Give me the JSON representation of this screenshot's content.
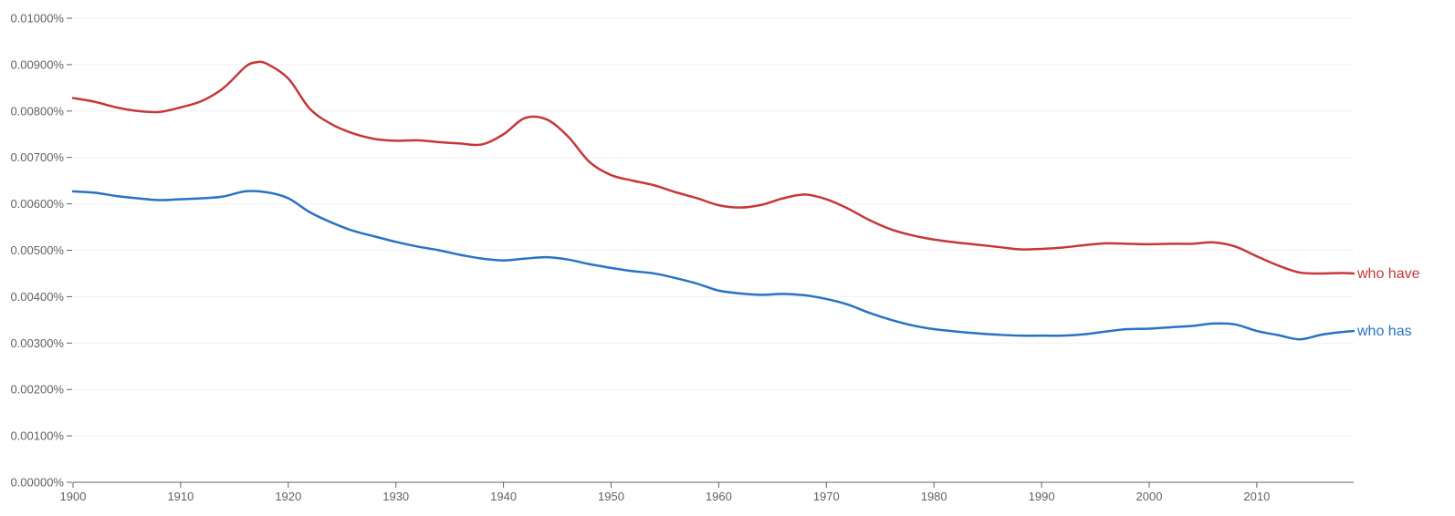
{
  "chart_data": {
    "type": "line",
    "title": "",
    "xlabel": "",
    "ylabel": "",
    "xlim": [
      1900,
      2019
    ],
    "ylim": [
      0,
      0.01
    ],
    "grid": true,
    "y_ticks": [
      {
        "value": 0.0,
        "label": "0.00000%"
      },
      {
        "value": 0.001,
        "label": "0.00100%"
      },
      {
        "value": 0.002,
        "label": "0.00200%"
      },
      {
        "value": 0.003,
        "label": "0.00300%"
      },
      {
        "value": 0.004,
        "label": "0.00400%"
      },
      {
        "value": 0.005,
        "label": "0.00500%"
      },
      {
        "value": 0.006,
        "label": "0.00600%"
      },
      {
        "value": 0.007,
        "label": "0.00700%"
      },
      {
        "value": 0.008,
        "label": "0.00800%"
      },
      {
        "value": 0.009,
        "label": "0.00900%"
      },
      {
        "value": 0.01,
        "label": "0.01000%"
      }
    ],
    "x_ticks": [
      {
        "value": 1900,
        "label": "1900"
      },
      {
        "value": 1910,
        "label": "1910"
      },
      {
        "value": 1920,
        "label": "1920"
      },
      {
        "value": 1930,
        "label": "1930"
      },
      {
        "value": 1940,
        "label": "1940"
      },
      {
        "value": 1950,
        "label": "1950"
      },
      {
        "value": 1960,
        "label": "1960"
      },
      {
        "value": 1970,
        "label": "1970"
      },
      {
        "value": 1980,
        "label": "1980"
      },
      {
        "value": 1990,
        "label": "1990"
      },
      {
        "value": 2000,
        "label": "2000"
      },
      {
        "value": 2010,
        "label": "2010"
      }
    ],
    "series": [
      {
        "name": "who have",
        "color": "#c5383a",
        "points": [
          [
            1900,
            0.00828
          ],
          [
            1902,
            0.0082
          ],
          [
            1904,
            0.00808
          ],
          [
            1906,
            0.008
          ],
          [
            1908,
            0.00798
          ],
          [
            1910,
            0.00808
          ],
          [
            1912,
            0.00822
          ],
          [
            1914,
            0.0085
          ],
          [
            1916,
            0.00895
          ],
          [
            1917,
            0.00905
          ],
          [
            1918,
            0.00902
          ],
          [
            1920,
            0.0087
          ],
          [
            1922,
            0.00805
          ],
          [
            1924,
            0.00772
          ],
          [
            1926,
            0.00752
          ],
          [
            1928,
            0.0074
          ],
          [
            1930,
            0.00736
          ],
          [
            1932,
            0.00737
          ],
          [
            1934,
            0.00733
          ],
          [
            1936,
            0.0073
          ],
          [
            1938,
            0.00728
          ],
          [
            1940,
            0.0075
          ],
          [
            1942,
            0.00785
          ],
          [
            1944,
            0.00782
          ],
          [
            1946,
            0.00745
          ],
          [
            1948,
            0.0069
          ],
          [
            1950,
            0.00662
          ],
          [
            1952,
            0.0065
          ],
          [
            1954,
            0.0064
          ],
          [
            1956,
            0.00625
          ],
          [
            1958,
            0.00612
          ],
          [
            1960,
            0.00597
          ],
          [
            1962,
            0.00592
          ],
          [
            1964,
            0.00598
          ],
          [
            1966,
            0.00612
          ],
          [
            1968,
            0.0062
          ],
          [
            1970,
            0.0061
          ],
          [
            1972,
            0.0059
          ],
          [
            1974,
            0.00565
          ],
          [
            1976,
            0.00545
          ],
          [
            1978,
            0.00532
          ],
          [
            1980,
            0.00523
          ],
          [
            1982,
            0.00517
          ],
          [
            1984,
            0.00512
          ],
          [
            1986,
            0.00507
          ],
          [
            1988,
            0.00502
          ],
          [
            1990,
            0.00503
          ],
          [
            1992,
            0.00506
          ],
          [
            1994,
            0.00511
          ],
          [
            1996,
            0.00515
          ],
          [
            1998,
            0.00514
          ],
          [
            2000,
            0.00513
          ],
          [
            2002,
            0.00514
          ],
          [
            2004,
            0.00514
          ],
          [
            2006,
            0.00517
          ],
          [
            2008,
            0.00508
          ],
          [
            2010,
            0.00487
          ],
          [
            2012,
            0.00467
          ],
          [
            2014,
            0.00452
          ],
          [
            2016,
            0.0045
          ],
          [
            2018,
            0.00451
          ],
          [
            2019,
            0.0045
          ]
        ]
      },
      {
        "name": "who has",
        "color": "#2a72c3",
        "points": [
          [
            1900,
            0.00627
          ],
          [
            1902,
            0.00624
          ],
          [
            1904,
            0.00617
          ],
          [
            1906,
            0.00612
          ],
          [
            1908,
            0.00608
          ],
          [
            1910,
            0.0061
          ],
          [
            1912,
            0.00612
          ],
          [
            1914,
            0.00616
          ],
          [
            1916,
            0.00627
          ],
          [
            1918,
            0.00625
          ],
          [
            1920,
            0.00612
          ],
          [
            1922,
            0.00582
          ],
          [
            1924,
            0.0056
          ],
          [
            1926,
            0.00542
          ],
          [
            1928,
            0.0053
          ],
          [
            1930,
            0.00518
          ],
          [
            1932,
            0.00508
          ],
          [
            1934,
            0.005
          ],
          [
            1936,
            0.0049
          ],
          [
            1938,
            0.00482
          ],
          [
            1940,
            0.00478
          ],
          [
            1942,
            0.00482
          ],
          [
            1944,
            0.00485
          ],
          [
            1946,
            0.0048
          ],
          [
            1948,
            0.0047
          ],
          [
            1950,
            0.00462
          ],
          [
            1952,
            0.00455
          ],
          [
            1954,
            0.0045
          ],
          [
            1956,
            0.0044
          ],
          [
            1958,
            0.00428
          ],
          [
            1960,
            0.00413
          ],
          [
            1962,
            0.00407
          ],
          [
            1964,
            0.00404
          ],
          [
            1966,
            0.00406
          ],
          [
            1968,
            0.00403
          ],
          [
            1970,
            0.00395
          ],
          [
            1972,
            0.00383
          ],
          [
            1974,
            0.00365
          ],
          [
            1976,
            0.0035
          ],
          [
            1978,
            0.00338
          ],
          [
            1980,
            0.0033
          ],
          [
            1982,
            0.00325
          ],
          [
            1984,
            0.00321
          ],
          [
            1986,
            0.00318
          ],
          [
            1988,
            0.00316
          ],
          [
            1990,
            0.00316
          ],
          [
            1992,
            0.00316
          ],
          [
            1994,
            0.00319
          ],
          [
            1996,
            0.00325
          ],
          [
            1998,
            0.0033
          ],
          [
            2000,
            0.00331
          ],
          [
            2002,
            0.00334
          ],
          [
            2004,
            0.00337
          ],
          [
            2006,
            0.00342
          ],
          [
            2008,
            0.0034
          ],
          [
            2010,
            0.00326
          ],
          [
            2012,
            0.00317
          ],
          [
            2014,
            0.00308
          ],
          [
            2016,
            0.00318
          ],
          [
            2018,
            0.00324
          ],
          [
            2019,
            0.00326
          ]
        ]
      }
    ]
  }
}
